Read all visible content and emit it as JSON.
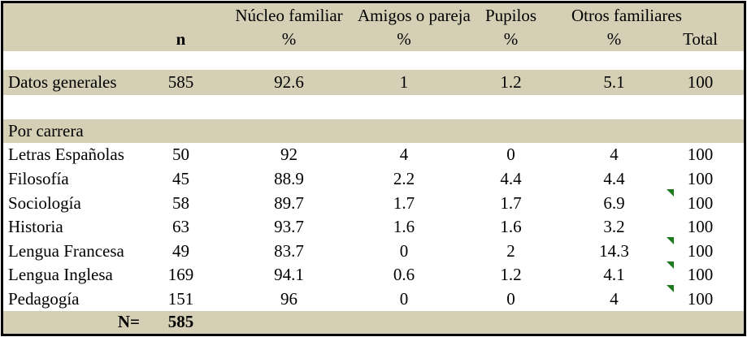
{
  "table": {
    "header_row1": [
      "",
      "",
      "Núcleo familiar",
      "Amigos o pareja",
      "Pupilos",
      "Otros familiares",
      ""
    ],
    "header_row2": [
      "",
      "n",
      "%",
      "%",
      "%",
      "%",
      "Total"
    ],
    "rows": [
      {
        "type": "spacer"
      },
      {
        "type": "data",
        "shaded": true,
        "flag": false,
        "cells": [
          "Datos generales",
          "585",
          "92.6",
          "1",
          "1.2",
          "5.1",
          "100"
        ]
      },
      {
        "type": "spacer"
      },
      {
        "type": "section",
        "label": "Por carrera"
      },
      {
        "type": "data",
        "shaded": false,
        "flag": false,
        "cells": [
          "Letras Españolas",
          "50",
          "92",
          "4",
          "0",
          "4",
          "100"
        ]
      },
      {
        "type": "data",
        "shaded": false,
        "flag": false,
        "cells": [
          "Filosofía",
          "45",
          "88.9",
          "2.2",
          "4.4",
          "4.4",
          "100"
        ]
      },
      {
        "type": "data",
        "shaded": false,
        "flag": true,
        "cells": [
          "Sociología",
          "58",
          "89.7",
          "1.7",
          "1.7",
          "6.9",
          "100"
        ]
      },
      {
        "type": "data",
        "shaded": false,
        "flag": false,
        "cells": [
          "Historia",
          "63",
          "93.7",
          "1.6",
          "1.6",
          "3.2",
          "100"
        ]
      },
      {
        "type": "data",
        "shaded": false,
        "flag": true,
        "cells": [
          "Lengua Francesa",
          "49",
          "83.7",
          "0",
          "2",
          "14.3",
          "100"
        ]
      },
      {
        "type": "data",
        "shaded": false,
        "flag": true,
        "cells": [
          "Lengua Inglesa",
          "169",
          "94.1",
          "0.6",
          "1.2",
          "4.1",
          "100"
        ]
      },
      {
        "type": "data",
        "shaded": false,
        "flag": true,
        "cells": [
          "Pedagogía",
          "151",
          "96",
          "0",
          "0",
          "4",
          "100"
        ]
      }
    ],
    "footer": {
      "label": "N=",
      "value": "585"
    }
  },
  "colors": {
    "band": "#D4CFB5",
    "flag_green": "#1E7A1E",
    "border": "#000000",
    "text": "#000000"
  }
}
